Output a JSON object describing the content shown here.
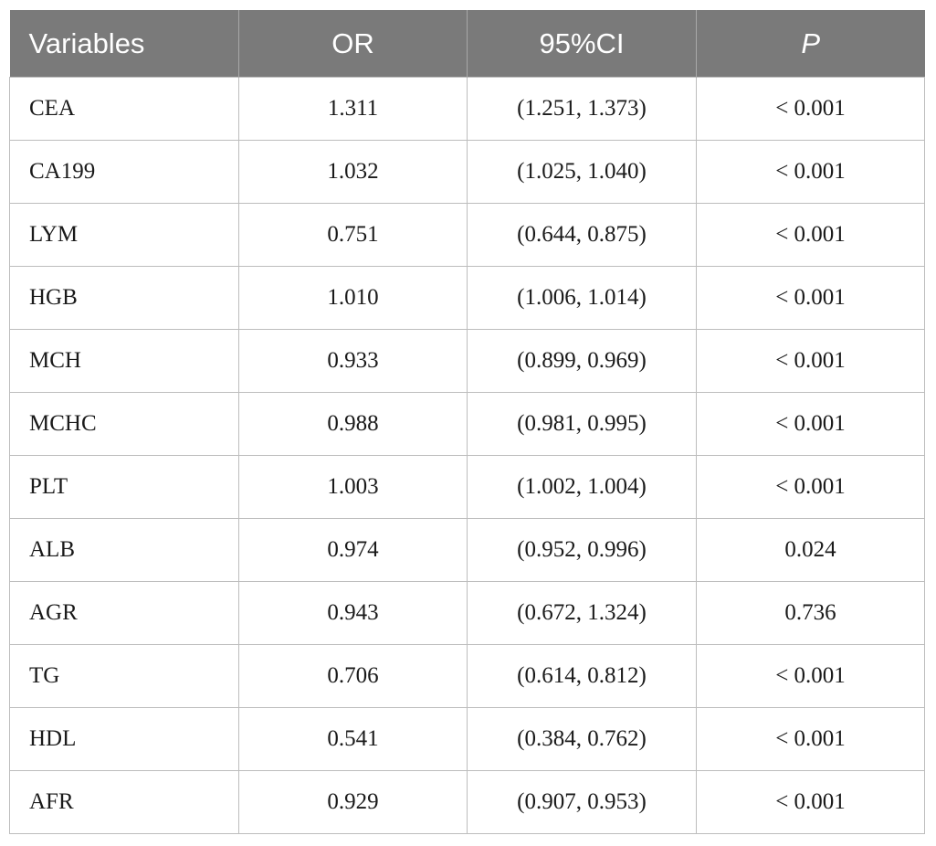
{
  "table": {
    "headers": [
      "Variables",
      "OR",
      "95%CI",
      "P"
    ],
    "rows": [
      [
        "CEA",
        "1.311",
        "(1.251, 1.373)",
        "< 0.001"
      ],
      [
        "CA199",
        "1.032",
        "(1.025, 1.040)",
        "< 0.001"
      ],
      [
        "LYM",
        "0.751",
        "(0.644, 0.875)",
        "< 0.001"
      ],
      [
        "HGB",
        "1.010",
        "(1.006, 1.014)",
        "< 0.001"
      ],
      [
        "MCH",
        "0.933",
        "(0.899, 0.969)",
        "< 0.001"
      ],
      [
        "MCHC",
        "0.988",
        "(0.981, 0.995)",
        "< 0.001"
      ],
      [
        "PLT",
        "1.003",
        "(1.002, 1.004)",
        "< 0.001"
      ],
      [
        "ALB",
        "0.974",
        "(0.952, 0.996)",
        "0.024"
      ],
      [
        "AGR",
        "0.943",
        "(0.672, 1.324)",
        "0.736"
      ],
      [
        "TG",
        "0.706",
        "(0.614, 0.812)",
        "< 0.001"
      ],
      [
        "HDL",
        "0.541",
        "(0.384, 0.762)",
        "< 0.001"
      ],
      [
        "AFR",
        "0.929",
        "(0.907, 0.953)",
        "< 0.001"
      ]
    ]
  },
  "colors": {
    "header_bg": "#7a7a7a",
    "header_text": "#ffffff",
    "grid": "#bdbdbd"
  }
}
